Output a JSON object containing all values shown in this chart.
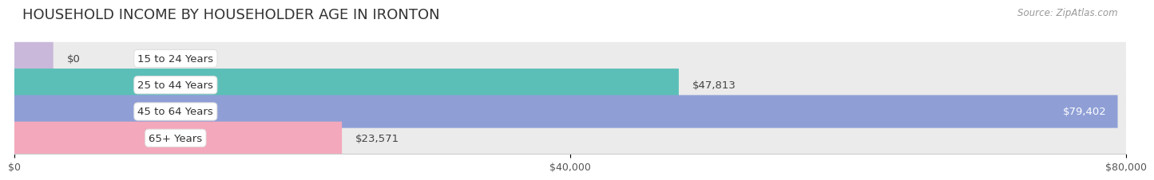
{
  "title": "HOUSEHOLD INCOME BY HOUSEHOLDER AGE IN IRONTON",
  "source": "Source: ZipAtlas.com",
  "categories": [
    "15 to 24 Years",
    "25 to 44 Years",
    "45 to 64 Years",
    "65+ Years"
  ],
  "values": [
    0,
    47813,
    79402,
    23571
  ],
  "bar_colors": [
    "#c9b8d9",
    "#5bbfb8",
    "#8f9fd6",
    "#f4a8bc"
  ],
  "bar_bg_color": "#ebebeb",
  "max_value": 80000,
  "x_ticks": [
    0,
    40000,
    80000
  ],
  "x_tick_labels": [
    "$0",
    "$40,000",
    "$80,000"
  ],
  "value_labels": [
    "$0",
    "$47,813",
    "$79,402",
    "$23,571"
  ],
  "value_label_inside": [
    false,
    false,
    true,
    false
  ],
  "background_color": "#ffffff",
  "title_fontsize": 13,
  "label_fontsize": 9.5,
  "tick_fontsize": 9,
  "source_fontsize": 8.5
}
